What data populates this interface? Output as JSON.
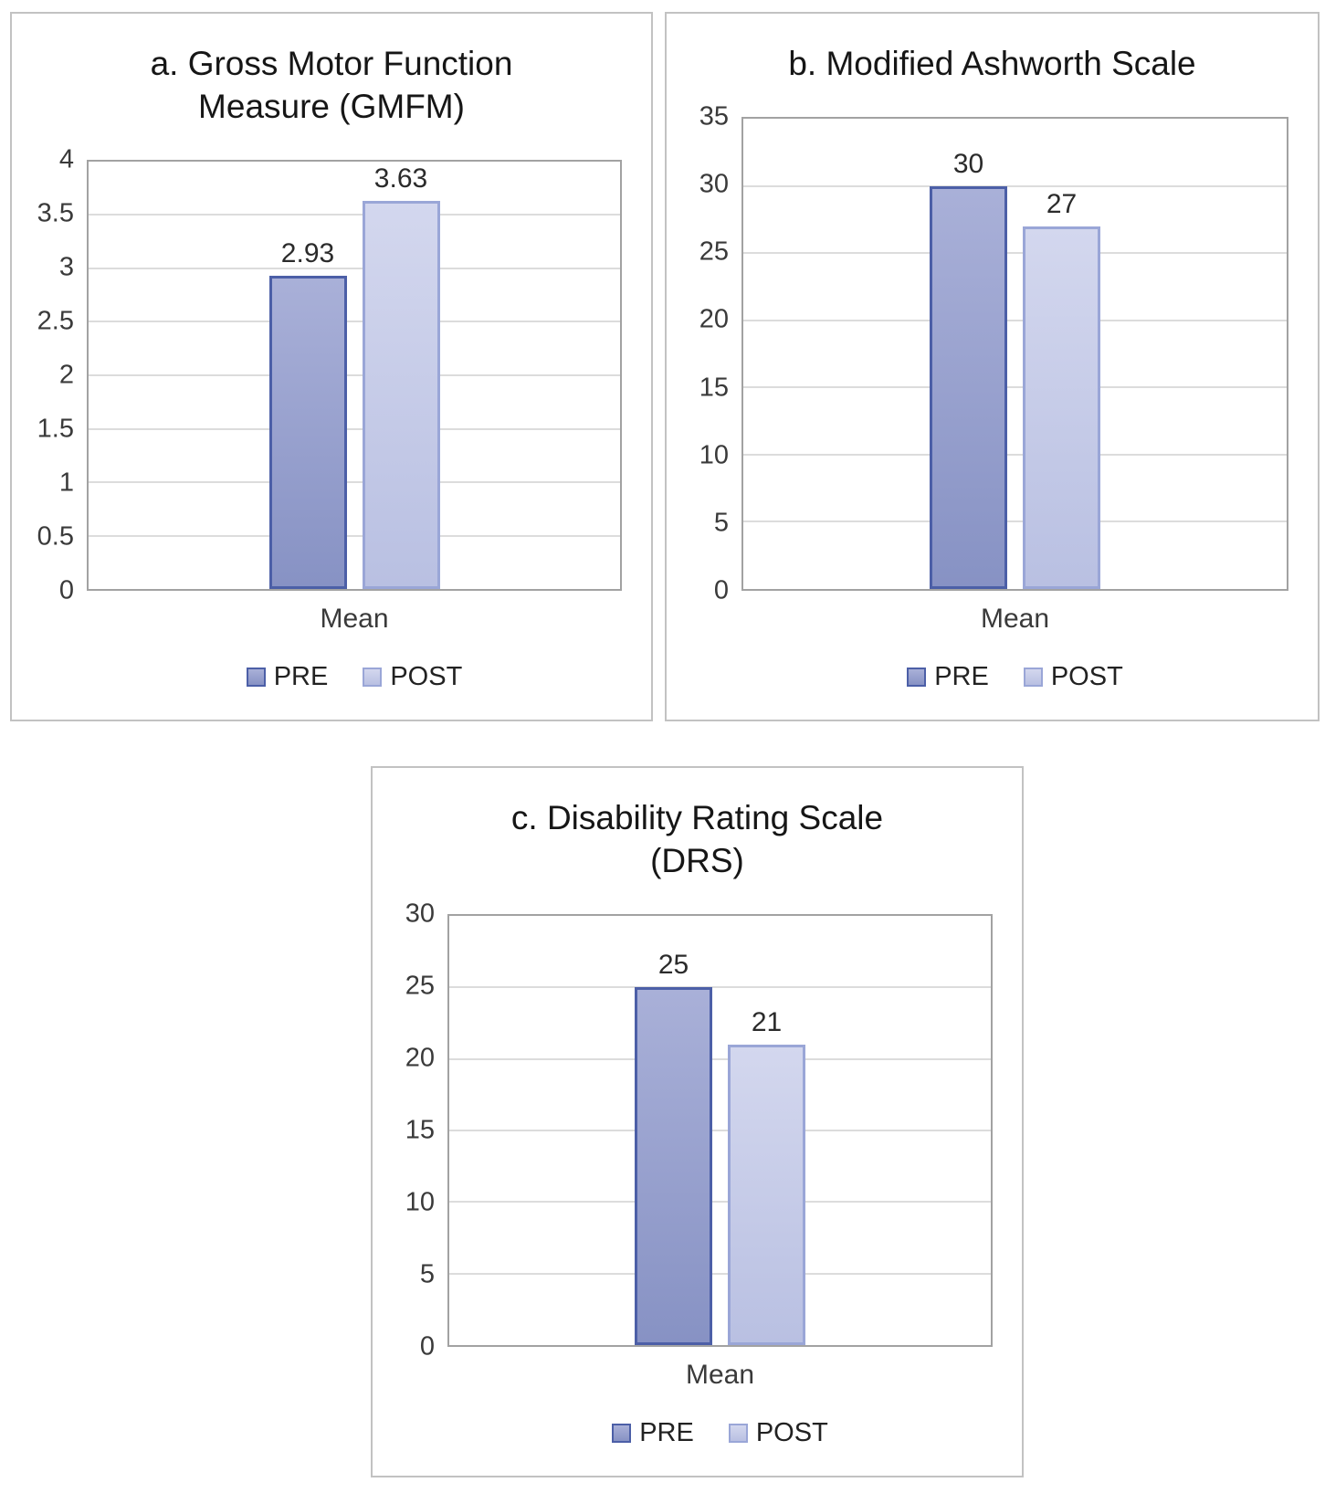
{
  "figure": {
    "background": "#ffffff",
    "panel_border_color": "#c2c2c2",
    "plot_border_color": "#a2a2a2",
    "gridline_color": "#dcdcdc"
  },
  "chart_data": [
    {
      "id": "gmfm",
      "type": "bar",
      "title": "a. Gross Motor Function\nMeasure (GMFM)",
      "categories": [
        "Mean"
      ],
      "xlabel": "",
      "ylabel": "",
      "ylim": [
        0,
        4
      ],
      "yticks": [
        "0",
        "0.5",
        "1",
        "1.5",
        "2",
        "2.5",
        "3",
        "3.5",
        "4"
      ],
      "grid": true,
      "legend_position": "bottom",
      "series": [
        {
          "name": "PRE",
          "value": 2.93,
          "label": "2.93",
          "fill_top": "#a9b0d8",
          "fill_bottom": "#8792c4",
          "border": "#4c5fa7"
        },
        {
          "name": "POST",
          "value": 3.63,
          "label": "3.63",
          "fill_top": "#d3d7ee",
          "fill_bottom": "#b9c0e2",
          "border": "#9aa6d7"
        }
      ]
    },
    {
      "id": "mas",
      "type": "bar",
      "title": "b. Modified Ashworth Scale",
      "categories": [
        "Mean"
      ],
      "xlabel": "",
      "ylabel": "",
      "ylim": [
        0,
        35
      ],
      "yticks": [
        "0",
        "5",
        "10",
        "15",
        "20",
        "25",
        "30",
        "35"
      ],
      "grid": true,
      "legend_position": "bottom",
      "series": [
        {
          "name": "PRE",
          "value": 30,
          "label": "30",
          "fill_top": "#a9b0d8",
          "fill_bottom": "#8792c4",
          "border": "#4c5fa7"
        },
        {
          "name": "POST",
          "value": 27,
          "label": "27",
          "fill_top": "#d3d7ee",
          "fill_bottom": "#b9c0e2",
          "border": "#9aa6d7"
        }
      ]
    },
    {
      "id": "drs",
      "type": "bar",
      "title": "c. Disability Rating Scale\n(DRS)",
      "categories": [
        "Mean"
      ],
      "xlabel": "",
      "ylabel": "",
      "ylim": [
        0,
        30
      ],
      "yticks": [
        "0",
        "5",
        "10",
        "15",
        "20",
        "25",
        "30"
      ],
      "grid": true,
      "legend_position": "bottom",
      "series": [
        {
          "name": "PRE",
          "value": 25,
          "label": "25",
          "fill_top": "#a9b0d8",
          "fill_bottom": "#8792c4",
          "border": "#4c5fa7"
        },
        {
          "name": "POST",
          "value": 21,
          "label": "21",
          "fill_top": "#d3d7ee",
          "fill_bottom": "#b9c0e2",
          "border": "#9aa6d7"
        }
      ]
    }
  ]
}
